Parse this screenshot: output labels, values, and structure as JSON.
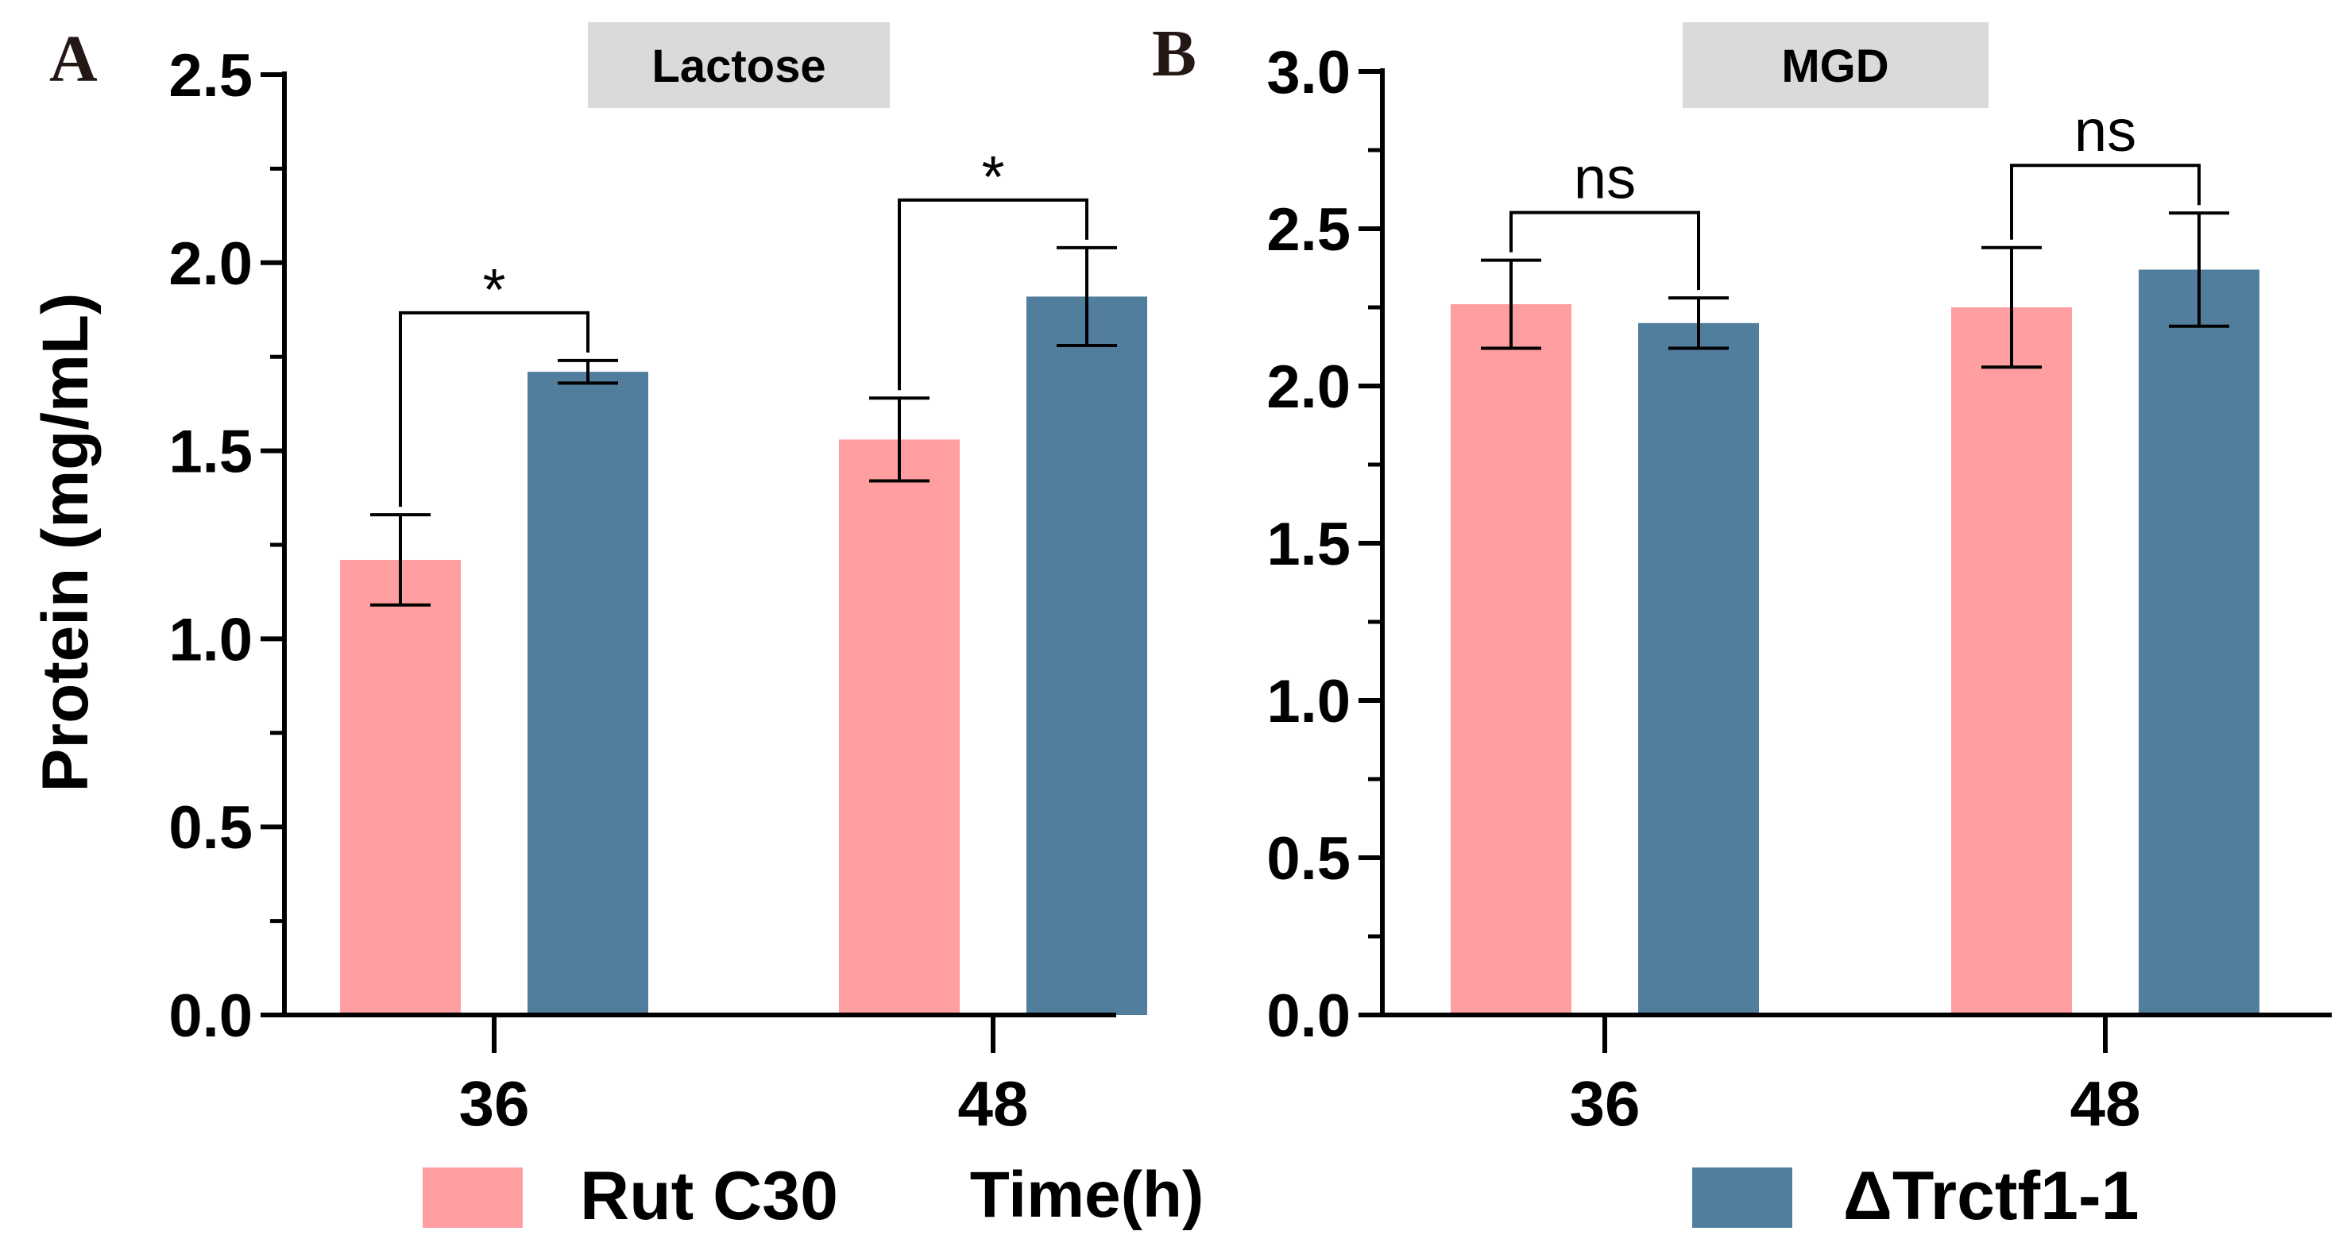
{
  "colors": {
    "series_1": "#FF9EA0",
    "series_2": "#527E9E",
    "title_box": "#DADADA",
    "axis": "#000000"
  },
  "figure": {
    "xlabel": "Time(h)",
    "ylabel": "Protein (mg/mL)"
  },
  "legend": {
    "placement": "bottom",
    "items": [
      {
        "label": "Rut C30",
        "color": "#FF9EA0"
      },
      {
        "label": "ΔTrctf1-1",
        "color": "#527E9E"
      }
    ]
  },
  "chart_data": [
    {
      "type": "bar",
      "panel": "A",
      "title": "Lactose",
      "categories": [
        "36",
        "48"
      ],
      "series": [
        {
          "name": "Rut C30",
          "values": [
            1.21,
            1.53
          ],
          "errors": [
            0.12,
            0.11
          ]
        },
        {
          "name": "ΔTrctf1-1",
          "values": [
            1.71,
            1.91
          ],
          "errors": [
            0.03,
            0.13
          ]
        }
      ],
      "ylim": [
        0,
        2.5
      ],
      "yticks": [
        "0.0",
        "0.5",
        "1.0",
        "1.5",
        "2.0",
        "2.5"
      ],
      "significance": [
        "*",
        "*"
      ],
      "grid": false
    },
    {
      "type": "bar",
      "panel": "B",
      "title": "MGD",
      "categories": [
        "36",
        "48"
      ],
      "series": [
        {
          "name": "Rut C30",
          "values": [
            2.26,
            2.25
          ],
          "errors": [
            0.14,
            0.19
          ]
        },
        {
          "name": "ΔTrctf1-1",
          "values": [
            2.2,
            2.37
          ],
          "errors": [
            0.08,
            0.18
          ]
        }
      ],
      "ylim": [
        0,
        3.0
      ],
      "yticks": [
        "0.0",
        "0.5",
        "1.0",
        "1.5",
        "2.0",
        "2.5",
        "3.0"
      ],
      "significance": [
        "ns",
        "ns"
      ],
      "grid": false
    }
  ]
}
